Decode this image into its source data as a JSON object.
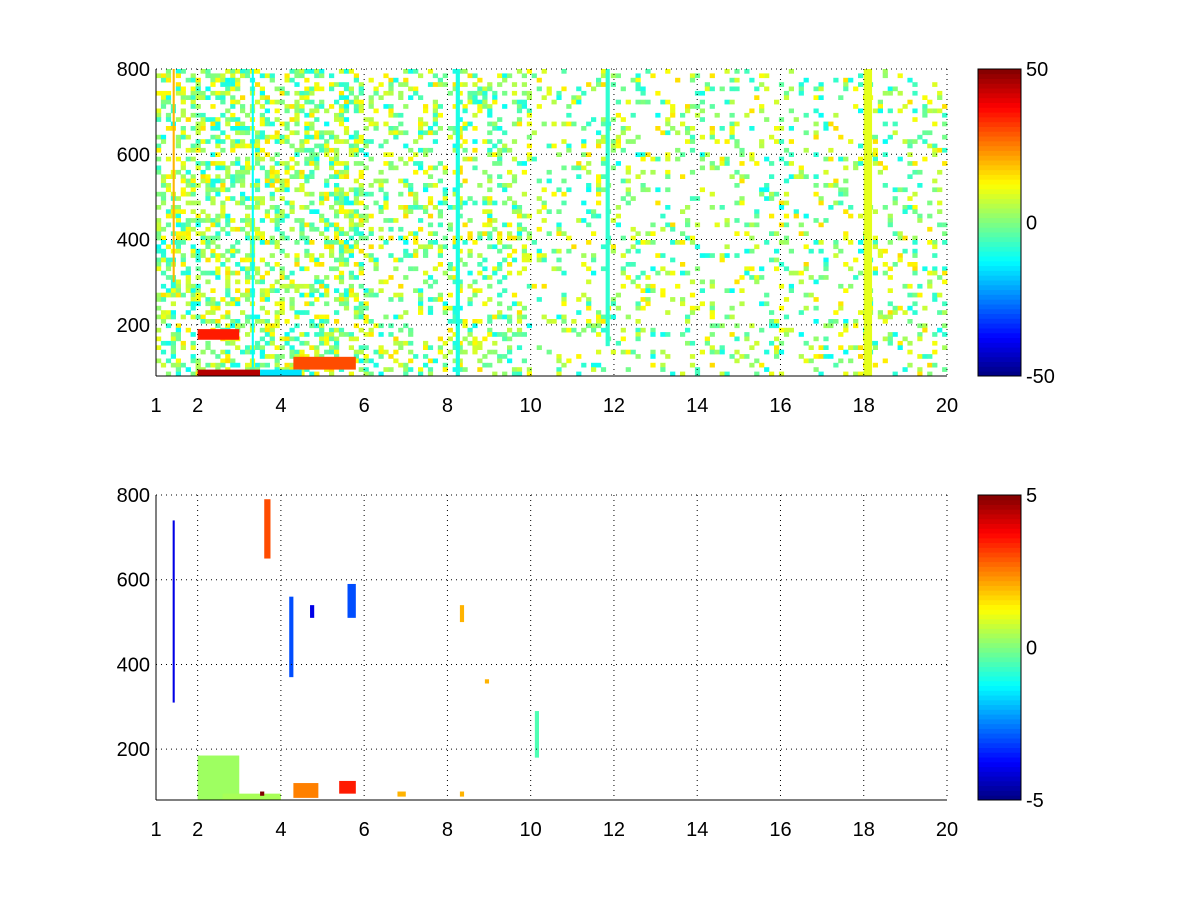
{
  "chart_data": [
    {
      "type": "heatmap",
      "title": "",
      "xlabel": "",
      "ylabel": "",
      "xlim": [
        1,
        20
      ],
      "ylim": [
        80,
        800
      ],
      "xticks": [
        1,
        2,
        4,
        6,
        8,
        10,
        12,
        14,
        16,
        18,
        20
      ],
      "yticks": [
        200,
        400,
        600,
        800
      ],
      "grid": true,
      "colormap": "jet",
      "color_range": [
        -50,
        50
      ],
      "colorbar_ticks": [
        -50,
        0,
        50
      ],
      "description_values": "Sparse scattered cells across the full domain; dense warm (orange/red, ~20 to 45) cells near y 80-190 for x 2-6; mostly green/cyan/yellow (~-15 to 15) elsewhere",
      "features": [
        {
          "x": [
            2.0,
            3.0
          ],
          "y": [
            165,
            190
          ],
          "value": 35
        },
        {
          "x": [
            2.0,
            3.5
          ],
          "y": [
            80,
            95
          ],
          "value": 45
        },
        {
          "x": [
            4.3,
            5.8
          ],
          "y": [
            95,
            125
          ],
          "value": 30
        },
        {
          "x": [
            3.5,
            4.5
          ],
          "y": [
            80,
            95
          ],
          "value": -15
        },
        {
          "x": [
            1.4,
            1.45
          ],
          "y": [
            300,
            800
          ],
          "value": 20
        },
        {
          "x": [
            3.3,
            3.35
          ],
          "y": [
            100,
            800
          ],
          "value": -12
        },
        {
          "x": [
            11.8,
            11.9
          ],
          "y": [
            150,
            800
          ],
          "value": -8
        },
        {
          "x": [
            8.2,
            8.3
          ],
          "y": [
            80,
            800
          ],
          "value": -10
        },
        {
          "x": [
            18.0,
            18.2
          ],
          "y": [
            80,
            800
          ],
          "value": 10
        }
      ]
    },
    {
      "type": "heatmap",
      "title": "",
      "xlabel": "",
      "ylabel": "",
      "xlim": [
        1,
        20
      ],
      "ylim": [
        80,
        800
      ],
      "xticks": [
        1,
        2,
        4,
        6,
        8,
        10,
        12,
        14,
        16,
        18,
        20
      ],
      "yticks": [
        200,
        400,
        600,
        800
      ],
      "grid": true,
      "colormap": "jet",
      "color_range": [
        -5,
        5
      ],
      "colorbar_ticks": [
        -5,
        0,
        5
      ],
      "features": [
        {
          "x": [
            1.4,
            1.45
          ],
          "y": [
            310,
            740
          ],
          "value": -4
        },
        {
          "x": [
            3.6,
            3.75
          ],
          "y": [
            650,
            790
          ],
          "value": 3
        },
        {
          "x": [
            4.2,
            4.3
          ],
          "y": [
            370,
            560
          ],
          "value": -3
        },
        {
          "x": [
            4.7,
            4.8
          ],
          "y": [
            510,
            540
          ],
          "value": -4
        },
        {
          "x": [
            5.6,
            5.8
          ],
          "y": [
            510,
            590
          ],
          "value": -3
        },
        {
          "x": [
            8.3,
            8.4
          ],
          "y": [
            500,
            540
          ],
          "value": 2
        },
        {
          "x": [
            2.0,
            3.0
          ],
          "y": [
            80,
            185
          ],
          "value": 0.3
        },
        {
          "x": [
            2.6,
            4.0
          ],
          "y": [
            80,
            95
          ],
          "value": 0.4
        },
        {
          "x": [
            4.3,
            4.9
          ],
          "y": [
            85,
            120
          ],
          "value": 2.5
        },
        {
          "x": [
            5.4,
            5.8
          ],
          "y": [
            95,
            125
          ],
          "value": 3.5
        },
        {
          "x": [
            6.8,
            7.0
          ],
          "y": [
            88,
            100
          ],
          "value": 2
        },
        {
          "x": [
            8.3,
            8.4
          ],
          "y": [
            88,
            100
          ],
          "value": 2
        },
        {
          "x": [
            8.9,
            9.0
          ],
          "y": [
            355,
            365
          ],
          "value": 2
        },
        {
          "x": [
            10.1,
            10.2
          ],
          "y": [
            180,
            290
          ],
          "value": -0.5
        },
        {
          "x": [
            3.5,
            3.6
          ],
          "y": [
            90,
            100
          ],
          "value": 5
        }
      ]
    }
  ]
}
